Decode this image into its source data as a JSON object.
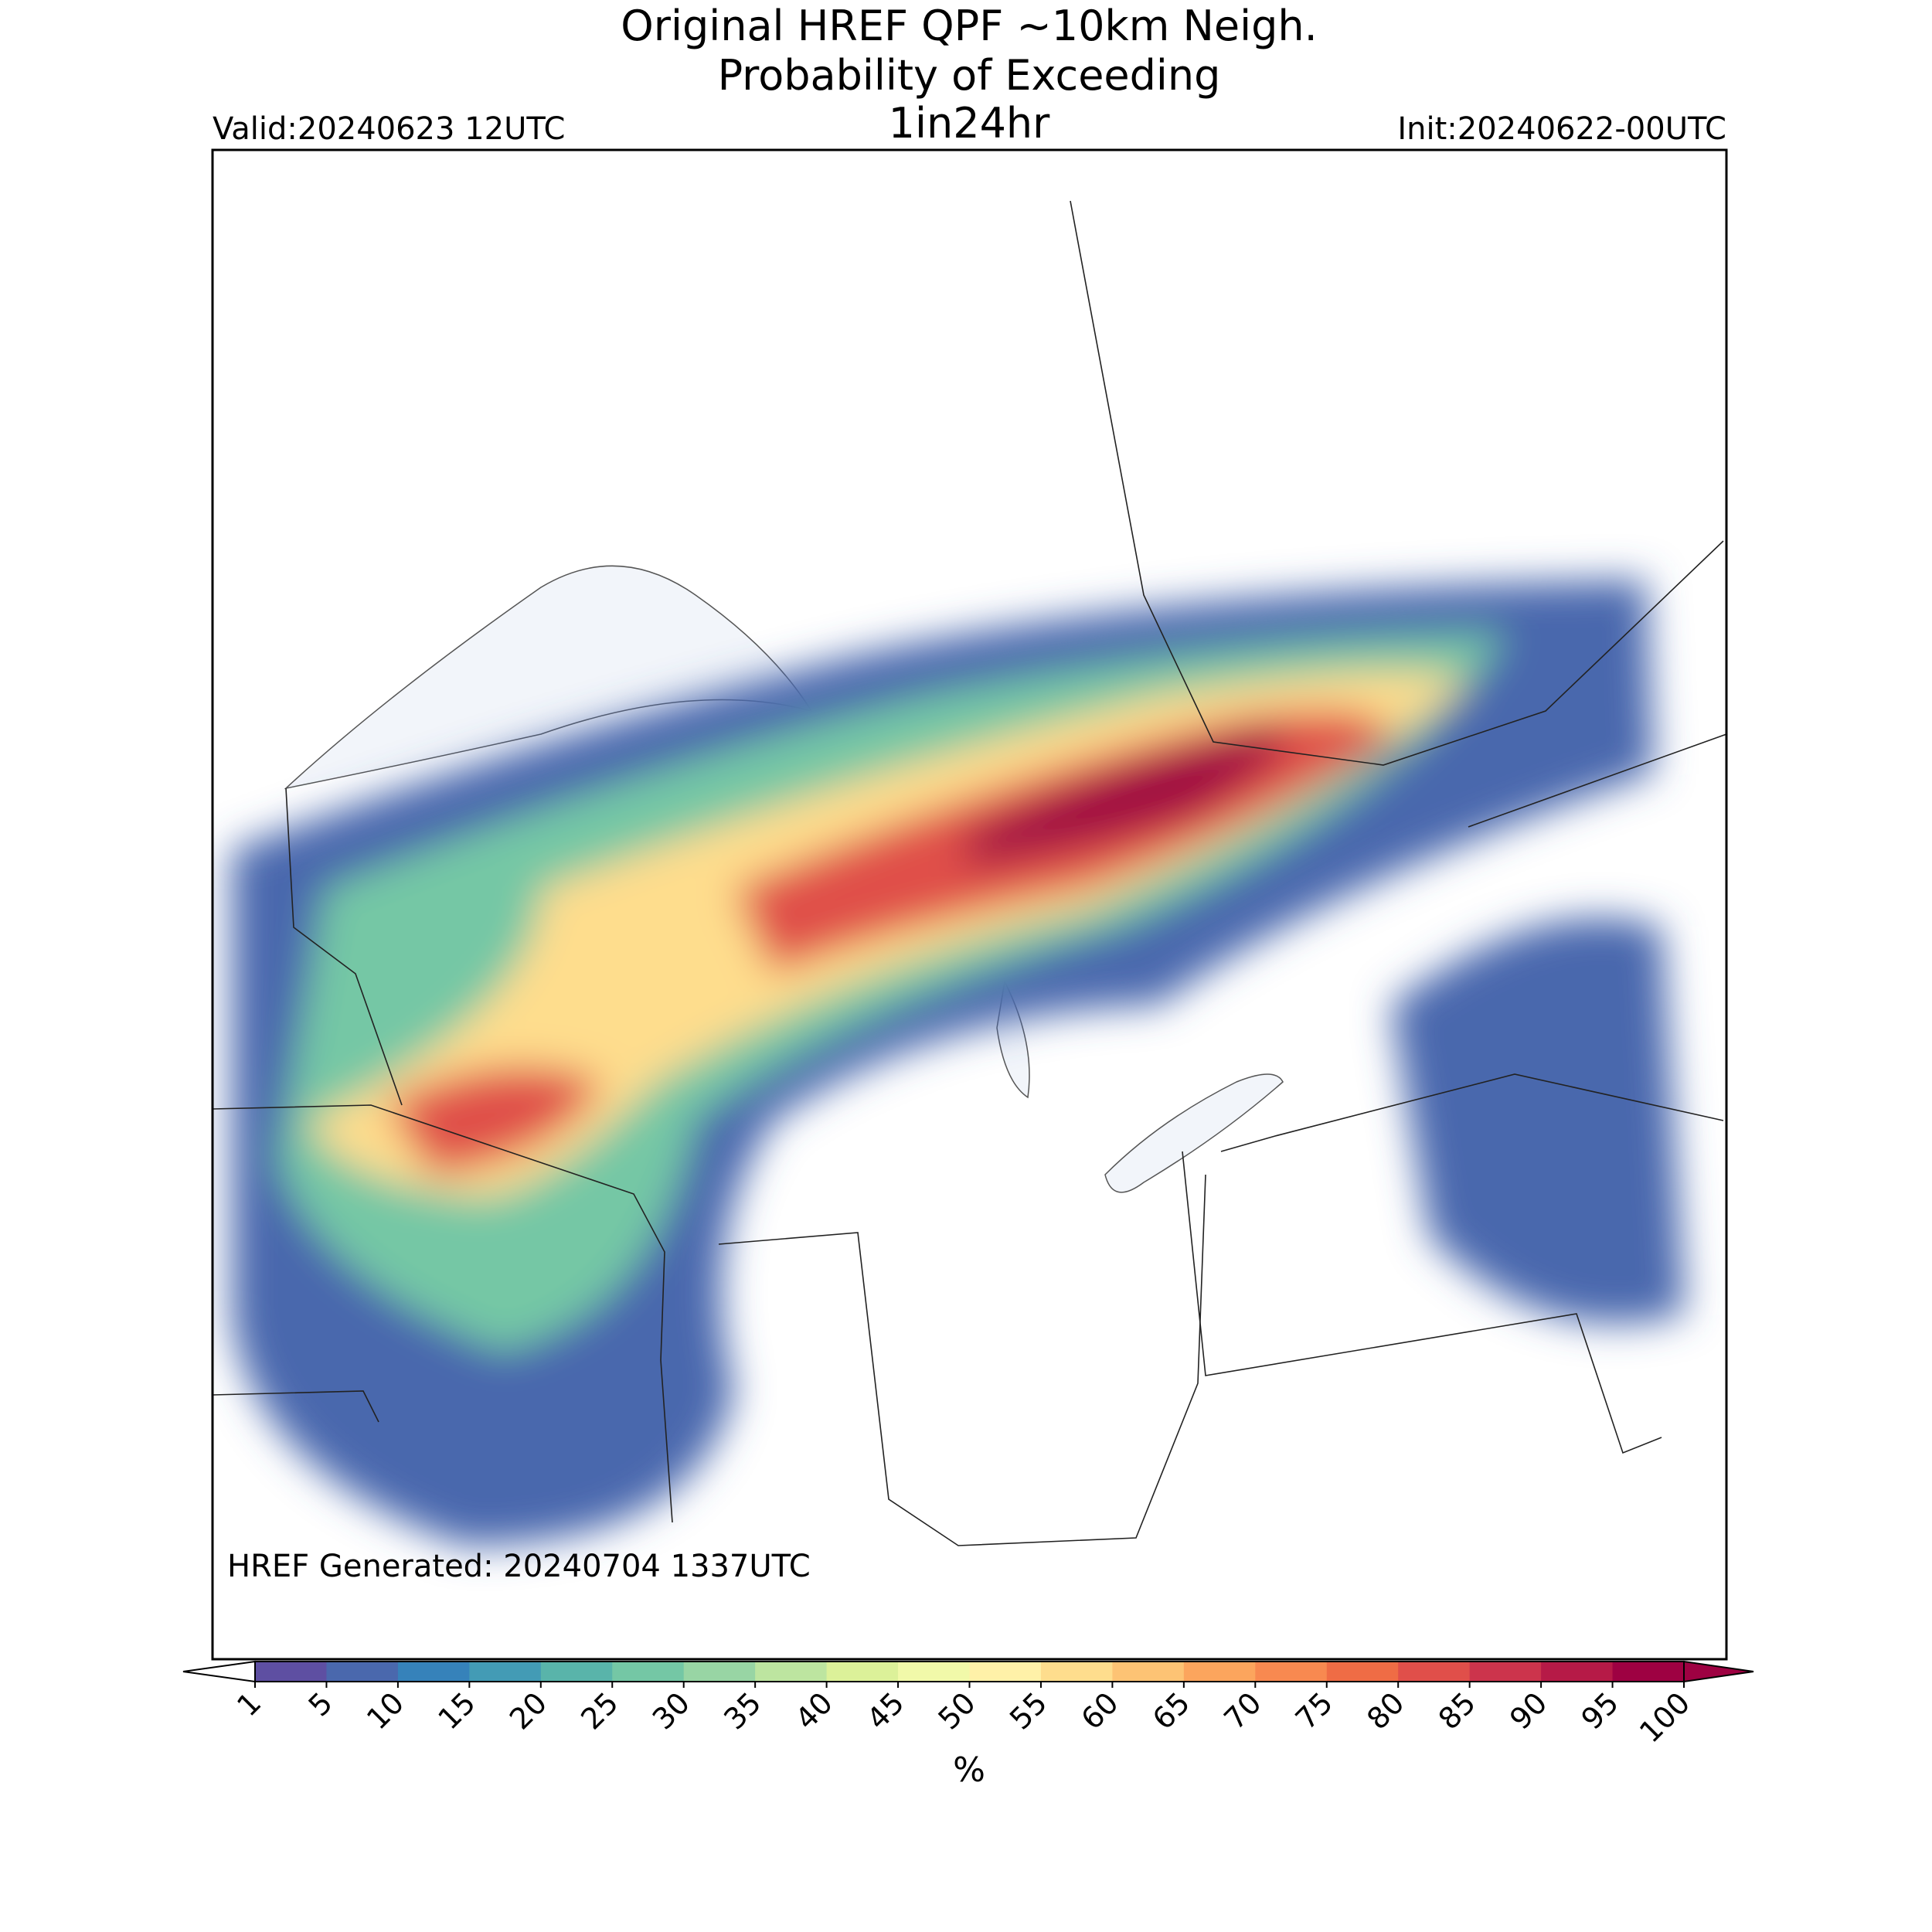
{
  "header": {
    "title": [
      "Original HREF QPF ~10km Neigh.",
      "Probability of Exceeding"
    ],
    "subtitle": "1in24hr",
    "valid": "Valid:20240623 12UTC",
    "init": "Init:20240622-00UTC"
  },
  "map": {
    "note": "HREF Generated: 20240704 1337UTC"
  },
  "colorbar": {
    "label": "%",
    "ticks": [
      1,
      5,
      10,
      15,
      20,
      25,
      30,
      35,
      40,
      45,
      50,
      55,
      60,
      65,
      70,
      75,
      80,
      85,
      90,
      95,
      100
    ],
    "colors": [
      "#5e4fa2",
      "#4a68ad",
      "#3682ba",
      "#439bb5",
      "#59b4aa",
      "#74c7a5",
      "#98d5a4",
      "#bde5a0",
      "#dcf199",
      "#f1f9a9",
      "#fff1a8",
      "#fedd8d",
      "#fdc374",
      "#fca55d",
      "#f88950",
      "#ef6c45",
      "#e04f4a",
      "#cc344c",
      "#b61a47",
      "#9e0142"
    ],
    "under": "#ffffff",
    "over": "#9e0142"
  }
}
